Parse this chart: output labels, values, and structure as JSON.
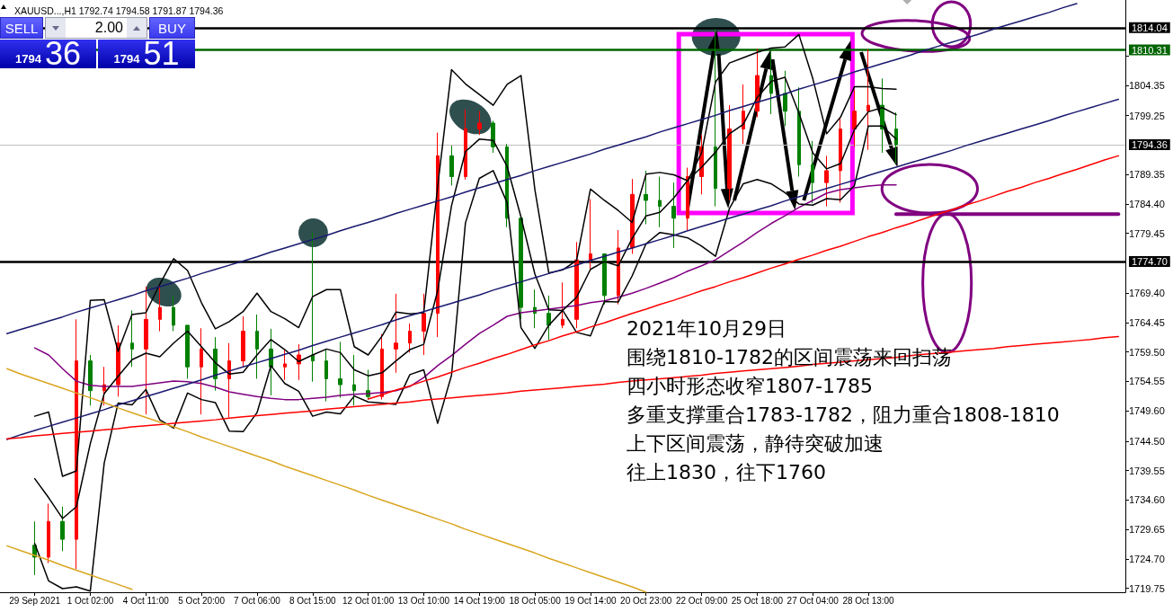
{
  "chart_data": {
    "type": "candlestick",
    "title": "XAUUSD...,H1 1792.74 1794.58 1791.87 1794.36",
    "categories": [
      null,
      null,
      "29 Sep 2021",
      null,
      null,
      null,
      "1 Oct 02:00",
      null,
      null,
      null,
      "4 Oct 11:00",
      null,
      null,
      null,
      "5 Oct 20:00",
      null,
      null,
      null,
      "7 Oct 06:00",
      null,
      null,
      null,
      "8 Oct 15:00",
      null,
      null,
      null,
      "12 Oct 01:00",
      null,
      null,
      null,
      "13 Oct 10:00",
      null,
      null,
      null,
      "14 Oct 19:00",
      null,
      null,
      null,
      "18 Oct 05:00",
      null,
      null,
      null,
      "19 Oct 14:00",
      null,
      null,
      null,
      "20 Oct 23:00",
      null,
      null,
      null,
      "22 Oct 09:00",
      null,
      null,
      null,
      "25 Oct 18:00",
      null,
      null,
      null,
      "27 Oct 04:00",
      null,
      null,
      null,
      "28 Oct 13:00",
      null,
      null,
      null,
      null,
      null,
      null,
      null,
      null,
      null,
      null,
      null,
      null,
      null,
      null,
      null,
      null,
      null,
      null
    ],
    "ohlc": [
      null,
      null,
      [
        1727,
        1731,
        1722,
        1725
      ],
      [
        1725,
        1734,
        1724,
        1731
      ],
      [
        1731,
        1733.5,
        1726,
        1728
      ],
      [
        1728,
        1765,
        1723,
        1758
      ],
      [
        1758,
        1759,
        1750.5,
        1753
      ],
      [
        1753,
        1757,
        1750.5,
        1754
      ],
      [
        1754,
        1764,
        1752,
        1761
      ],
      [
        1761,
        1766.5,
        1757,
        1760
      ],
      [
        1760,
        1770.5,
        1749,
        1765
      ],
      [
        1765,
        1770.8,
        1763,
        1767
      ],
      [
        1767,
        1769,
        1763,
        1764
      ],
      [
        1764,
        1764,
        1755,
        1757
      ],
      [
        1757,
        1763.5,
        1749,
        1760
      ],
      [
        1760,
        1762,
        1753,
        1755
      ],
      [
        1755,
        1761,
        1748.5,
        1758
      ],
      [
        1758,
        1765.5,
        1757,
        1763
      ],
      [
        1763,
        1765.8,
        1755,
        1760
      ],
      [
        1760,
        1763.4,
        1752.2,
        1757
      ],
      [
        1757,
        1759.8,
        1754.8,
        1757.5
      ],
      [
        1757.5,
        1760.8,
        1754.8,
        1759
      ],
      [
        1759,
        1779.6,
        1754.5,
        1758
      ],
      [
        1758,
        1760,
        1751.2,
        1755
      ],
      [
        1755,
        1761.2,
        1751.8,
        1754
      ],
      [
        1754,
        1759,
        1750.5,
        1753
      ],
      [
        1753,
        1756.5,
        1751.5,
        1752
      ],
      [
        1752,
        1762.5,
        1751.5,
        1760
      ],
      [
        1760,
        1769.3,
        1756,
        1761
      ],
      [
        1761,
        1764.3,
        1759.4,
        1763
      ],
      [
        1763,
        1769.3,
        1759,
        1766
      ],
      [
        1766,
        1796.4,
        1762,
        1792.5
      ],
      [
        1792.5,
        1794.2,
        1787.5,
        1789
      ],
      [
        1789,
        1800.3,
        1788.5,
        1797
      ],
      [
        1797,
        1800,
        1796,
        1798
      ],
      [
        1798,
        1798.4,
        1793,
        1794
      ],
      [
        1794,
        1794.5,
        1780.5,
        1782
      ],
      [
        1782,
        1782,
        1765,
        1767
      ],
      [
        1767,
        1770,
        1763.5,
        1766
      ],
      [
        1766,
        1769,
        1761.5,
        1764
      ],
      [
        1764,
        1771.2,
        1763.5,
        1765
      ],
      [
        1765,
        1778,
        1763.5,
        1775
      ],
      [
        1775,
        1785.2,
        1773.5,
        1776
      ],
      [
        1776,
        1776,
        1767.5,
        1769
      ],
      [
        1769,
        1780,
        1767.5,
        1777
      ],
      [
        1777,
        1788.6,
        1776,
        1786
      ],
      [
        1786,
        1790,
        1781,
        1785
      ],
      [
        1785,
        1789,
        1780.5,
        1784
      ],
      [
        1784,
        1788,
        1777,
        1782
      ],
      [
        1782,
        1790.5,
        1780,
        1789
      ],
      [
        1789,
        1796,
        1786,
        1794
      ],
      [
        1794,
        1813.8,
        1784,
        1787
      ],
      [
        1787,
        1801,
        1785,
        1797
      ],
      [
        1797,
        1804.5,
        1794.5,
        1800
      ],
      [
        1800,
        1810.5,
        1799,
        1806
      ],
      [
        1806,
        1810,
        1799.5,
        1803
      ],
      [
        1803,
        1806.8,
        1797.5,
        1800
      ],
      [
        1800,
        1804,
        1789,
        1791
      ],
      [
        1791,
        1795,
        1784.5,
        1788
      ],
      [
        1788,
        1792.5,
        1784,
        1790
      ],
      [
        1790,
        1799,
        1784.6,
        1797
      ],
      [
        1797,
        1803.6,
        1794,
        1800
      ],
      [
        1800,
        1810.4,
        1793.5,
        1801
      ],
      [
        1801,
        1805.5,
        1793,
        1797
      ],
      [
        1797,
        1799.8,
        1791.2,
        1794.36
      ],
      null,
      null,
      null,
      null,
      null,
      null,
      null,
      null,
      null,
      null,
      null,
      null,
      null,
      null,
      null,
      null
    ],
    "colors": [
      null,
      null,
      "#008000",
      "#ff0000",
      "#008000",
      "#ff0000",
      "#008000",
      "#ff0000",
      "#ff0000",
      "#008000",
      "#ff0000",
      "#ff0000",
      "#008000",
      "#008000",
      "#ff0000",
      "#008000",
      "#ff0000",
      "#ff0000",
      "#008000",
      "#008000",
      "#ff0000",
      "#ff0000",
      "#008000",
      "#008000",
      "#008000",
      "#008000",
      "#008000",
      "#ff0000",
      "#ff0000",
      "#ff0000",
      "#ff0000",
      "#ff0000",
      "#008000",
      "#ff0000",
      "#ff0000",
      "#008000",
      "#008000",
      "#008000",
      "#008000",
      "#008000",
      "#ff0000",
      "#ff0000",
      "#ff0000",
      "#008000",
      "#ff0000",
      "#ff0000",
      "#008000",
      "#008000",
      "#008000",
      "#ff0000",
      "#ff0000",
      "#008000",
      "#ff0000",
      "#ff0000",
      "#ff0000",
      "#008000",
      "#008000",
      "#008000",
      "#008000",
      "#ff0000",
      "#ff0000",
      "#ff0000",
      "#ff0000",
      "#008000",
      "#008000",
      null,
      null,
      null,
      null,
      null,
      null,
      null,
      null,
      null,
      null,
      null,
      null,
      null,
      null,
      null,
      null
    ],
    "series": [
      {
        "type": "line",
        "color": "#800080",
        "values": [
          null,
          null,
          1760.2,
          1759.0,
          1756.7,
          1754.6,
          1753.9,
          1753.7,
          1753.7,
          1753.7,
          1754.0,
          1754.3,
          1754.6,
          1754.5,
          1754.2,
          1753.6,
          1752.8,
          1752.4,
          1752.0,
          1751.7,
          1751.5,
          1751.5,
          1751.7,
          1751.9,
          1752.2,
          1752.4,
          1752.5,
          1752.7,
          1753.0,
          1753.7,
          1755.2,
          1757.2,
          1758.9,
          1760.8,
          1762.6,
          1764.0,
          1765.5,
          1766.1,
          1766.4,
          1766.7,
          1767.0,
          1767.3,
          1767.8,
          1768.1,
          1768.7,
          1769.4,
          1770.2,
          1771.1,
          1772.0,
          1773.1,
          1774.0,
          1775.0,
          1776.5,
          1778.0,
          1779.6,
          1781.1,
          1782.4,
          1783.8,
          1785.0,
          1786.2,
          1786.8,
          1787.1,
          1787.4,
          1787.6,
          1787.6,
          null,
          null,
          null,
          null,
          null,
          null,
          null,
          null,
          null,
          null,
          null,
          null,
          null,
          null,
          null,
          null
        ]
      },
      {
        "type": "line",
        "color": "#000000",
        "values": [
          null,
          null,
          1748.7,
          1749.4,
          1738.6,
          1739.5,
          1768.2,
          1768.3,
          1759.6,
          1765.8,
          1766.1,
          1770.9,
          1775.2,
          1773.2,
          1767.8,
          1763.4,
          1764.6,
          1766.3,
          1769.4,
          1766.3,
          1765.1,
          1763.6,
          1768.8,
          1770.0,
          1770.0,
          1760.4,
          1759.0,
          1762.2,
          1766.2,
          1765.9,
          1766.1,
          1787.3,
          1807.0,
          1804.6,
          1802.8,
          1801.0,
          1804.5,
          1806.0,
          1786.8,
          1772.8,
          1773.3,
          1774.9,
          1786.9,
          1785.0,
          1783.3,
          1781.3,
          1789.4,
          1789.7,
          1789.3,
          1788.3,
          1793.0,
          1804.9,
          1808.1,
          1809.0,
          1809.9,
          1810.6,
          1810.8,
          1812.9,
          1805.5,
          1796.2,
          1799.0,
          1804.1,
          1804.1,
          1803.8,
          1803.7,
          null,
          null,
          null,
          null,
          null,
          null,
          null,
          null,
          null,
          null,
          null,
          null,
          null,
          null,
          null,
          null
        ]
      },
      {
        "type": "line",
        "color": "#000000",
        "values": [
          null,
          null,
          1738.2,
          1735.0,
          1731.5,
          1733.5,
          1744.1,
          1752.5,
          1755.4,
          1758.2,
          1759.3,
          1758.7,
          1761.0,
          1763.0,
          1760.4,
          1757.7,
          1755.8,
          1756.1,
          1759.0,
          1761.6,
          1759.9,
          1757.9,
          1759.0,
          1760.0,
          1759.4,
          1756.5,
          1755.5,
          1756.0,
          1758.0,
          1759.9,
          1760.8,
          1769.8,
          1784.1,
          1793.2,
          1795.3,
          1795.1,
          1790.7,
          1782.2,
          1772.6,
          1766.6,
          1766.5,
          1768.7,
          1773.4,
          1774.7,
          1774.0,
          1778.6,
          1782.4,
          1783.0,
          1785.4,
          1788.4,
          1790.6,
          1793.1,
          1796.2,
          1797.8,
          1802.3,
          1805.0,
          1805.7,
          1799.7,
          1793.0,
          1790.3,
          1791.2,
          1796.9,
          1799.9,
          1800.6,
          1799.4,
          null,
          null,
          null,
          null,
          null,
          null,
          null,
          null,
          null,
          null,
          null,
          null,
          null,
          null,
          null,
          null
        ]
      },
      {
        "type": "line",
        "color": "#000000",
        "values": [
          null,
          null,
          1727.3,
          1721.0,
          1719.7,
          1720.0,
          1719.3,
          1740.8,
          1750.9,
          1750.6,
          1753.2,
          1748.1,
          1746.7,
          1752.6,
          1751.5,
          1751.0,
          1746.2,
          1746.1,
          1749.3,
          1757.2,
          1754.2,
          1752.9,
          1748.7,
          1749.4,
          1749.1,
          1752.1,
          1751.1,
          1750.9,
          1750.7,
          1755.7,
          1756.5,
          1747.5,
          1755.6,
          1781.2,
          1788.7,
          1790.0,
          1784.6,
          1763.6,
          1760.1,
          1764.0,
          1766.5,
          1762.8,
          1762.2,
          1768.0,
          1767.9,
          1772.3,
          1777.7,
          1779.6,
          1779.2,
          1778.7,
          1777.3,
          1775.6,
          1783.6,
          1787.8,
          1788.5,
          1787.8,
          1786.3,
          1784.4,
          1784.2,
          1785.3,
          1785.1,
          1787.5,
          1797.5,
          1797.5,
          1795.3,
          null,
          null,
          null,
          null,
          null,
          null,
          null,
          null,
          null,
          null,
          null,
          null,
          null,
          null,
          null,
          null
        ]
      },
      {
        "type": "line",
        "color": "#191970",
        "values": [
          1762.6,
          1763.3,
          1764.0,
          1764.7,
          1765.4,
          1766.2,
          1766.9,
          1767.6,
          1768.3,
          1769.0,
          1769.8,
          1770.5,
          1771.2,
          1771.9,
          1772.7,
          1773.4,
          1774.1,
          1774.8,
          1775.5,
          1776.3,
          1777.0,
          1777.7,
          1778.4,
          1779.1,
          1779.9,
          1780.6,
          1781.3,
          1782.0,
          1782.8,
          1783.5,
          1784.2,
          1784.9,
          1785.6,
          1786.4,
          1787.1,
          1787.8,
          1788.5,
          1789.2,
          1790.0,
          1790.7,
          1791.4,
          1792.1,
          1792.8,
          1793.6,
          1794.3,
          1795.0,
          1795.7,
          1796.5,
          1797.2,
          1797.9,
          1798.6,
          1799.3,
          1800.1,
          1800.8,
          1801.5,
          1802.2,
          1802.9,
          1803.7,
          1804.4,
          1805.1,
          1805.8,
          1806.6,
          1807.3,
          1808.0,
          1808.7,
          1809.4,
          1810.2,
          1810.9,
          1811.6,
          1812.3,
          1813.0,
          1813.8,
          1814.5,
          1815.2,
          1815.9,
          1816.6,
          1817.4,
          1818.1,
          null,
          null,
          null
        ]
      },
      {
        "type": "line",
        "color": "#191970",
        "values": [
          1744.8,
          1745.6,
          1746.3,
          1747.0,
          1747.7,
          1748.4,
          1749.1,
          1749.8,
          1750.6,
          1751.3,
          1752.0,
          1752.7,
          1753.4,
          1754.1,
          1754.8,
          1755.6,
          1756.3,
          1757.0,
          1757.7,
          1758.4,
          1759.1,
          1759.8,
          1760.6,
          1761.3,
          1762.0,
          1762.7,
          1763.4,
          1764.1,
          1764.9,
          1765.6,
          1766.3,
          1767.0,
          1767.7,
          1768.4,
          1769.1,
          1769.9,
          1770.6,
          1771.3,
          1772.0,
          1772.7,
          1773.4,
          1774.1,
          1774.9,
          1775.6,
          1776.3,
          1777.0,
          1777.7,
          1778.4,
          1779.1,
          1779.9,
          1780.6,
          1781.3,
          1782.0,
          1782.7,
          1783.4,
          1784.1,
          1784.9,
          1785.6,
          1786.3,
          1787.0,
          1787.7,
          1788.4,
          1789.2,
          1789.9,
          1790.6,
          1791.3,
          1792.0,
          1792.7,
          1793.4,
          1794.2,
          1794.9,
          1795.6,
          1796.3,
          1797.0,
          1797.7,
          1798.4,
          1799.2,
          1799.9,
          1800.6,
          1801.3,
          1802.0
        ]
      },
      {
        "type": "line",
        "color": "#ff0000",
        "values": [
          null,
          null,
          null,
          null,
          null,
          null,
          null,
          null,
          null,
          null,
          null,
          null,
          null,
          null,
          null,
          null,
          null,
          null,
          null,
          null,
          null,
          null,
          null,
          null,
          null,
          null,
          1751.6,
          1752.3,
          1753.1,
          1753.8,
          1754.6,
          1755.3,
          1756.1,
          1756.9,
          1757.6,
          1758.4,
          1759.1,
          1759.9,
          1760.7,
          1761.4,
          1762.2,
          1762.9,
          1763.7,
          1764.4,
          1765.2,
          1766.0,
          1766.7,
          1767.5,
          1768.2,
          1769.0,
          1769.8,
          1770.5,
          1771.3,
          1772.0,
          1772.8,
          1773.6,
          1774.3,
          1775.1,
          1775.8,
          1776.6,
          1777.3,
          1778.1,
          1778.9,
          1779.6,
          1780.4,
          1781.1,
          1781.9,
          1782.7,
          1783.4,
          1784.2,
          1784.9,
          1785.7,
          1786.5,
          1787.2,
          1788.0,
          1788.7,
          1789.5,
          1790.2,
          1791.0,
          1791.8,
          1792.5
        ]
      },
      {
        "type": "line",
        "color": "#ff0000",
        "values": [
          1744.9,
          1745.1,
          1745.4,
          1745.6,
          1745.8,
          1746.0,
          1746.2,
          1746.4,
          1746.6,
          1746.9,
          1747.1,
          1747.3,
          1747.5,
          1747.7,
          1747.9,
          1748.1,
          1748.4,
          1748.6,
          1748.8,
          1749.0,
          1749.2,
          1749.4,
          1749.6,
          1749.9,
          1750.1,
          1750.3,
          1750.5,
          1750.7,
          1750.9,
          1751.1,
          1751.4,
          1751.6,
          1751.8,
          1752.0,
          1752.2,
          1752.4,
          1752.6,
          1752.9,
          1753.1,
          1753.3,
          1753.5,
          1753.7,
          1753.9,
          1754.1,
          1754.4,
          1754.6,
          1754.8,
          1755.0,
          1755.2,
          1755.4,
          1755.6,
          1755.9,
          1756.1,
          1756.3,
          1756.5,
          1756.7,
          1756.9,
          1757.1,
          1757.4,
          1757.6,
          1757.8,
          1758.0,
          1758.2,
          1758.4,
          1758.6,
          1758.9,
          1759.1,
          1759.3,
          1759.5,
          1759.7,
          1759.9,
          1760.1,
          1760.4,
          1760.6,
          1760.8,
          1761.0,
          1761.2,
          1761.4,
          1761.6,
          1761.9,
          1762.1
        ]
      },
      {
        "type": "line",
        "color": "#daa520",
        "values": [
          1756.7,
          1755.8,
          1755.0,
          1754.2,
          1753.4,
          1752.6,
          1751.8,
          1751.0,
          1750.1,
          1749.3,
          1748.5,
          1747.7,
          1746.9,
          1746.1,
          1745.2,
          1744.4,
          1743.6,
          1742.8,
          1742.0,
          1741.2,
          1740.3,
          1739.5,
          1738.7,
          1737.9,
          1737.1,
          1736.3,
          1735.4,
          1734.6,
          1733.8,
          1733.0,
          1732.2,
          1731.4,
          1730.6,
          1729.7,
          1728.9,
          1728.1,
          1727.3,
          1726.5,
          1725.7,
          1724.8,
          1724.0,
          1723.2,
          1722.4,
          1721.6,
          1720.8,
          1720.0,
          1719.1,
          null,
          null,
          null,
          null,
          null,
          null,
          null,
          null,
          null,
          null,
          null,
          null,
          null,
          null,
          null,
          null,
          null,
          null,
          null,
          null,
          null,
          null,
          null,
          null,
          null,
          null,
          null,
          null,
          null,
          null,
          null,
          null,
          null,
          null
        ]
      },
      {
        "type": "line",
        "color": "#daa520",
        "values": [
          1726.9,
          1726.1,
          1725.3,
          1724.5,
          1723.6,
          1722.8,
          1722.0,
          1721.2,
          1720.4,
          1719.6,
          null,
          null,
          null,
          null,
          null,
          null,
          null,
          null,
          null,
          null,
          null,
          null,
          null,
          null,
          null,
          null,
          null,
          null,
          null,
          null,
          null,
          null,
          null,
          null,
          null,
          null,
          null,
          null,
          null,
          null,
          null,
          null,
          null,
          null,
          null,
          null,
          null,
          null,
          null,
          null,
          null,
          null,
          null,
          null,
          null,
          null,
          null,
          null,
          null,
          null,
          null,
          null,
          null,
          null,
          null,
          null,
          null,
          null,
          null,
          null,
          null,
          null,
          null,
          null,
          null,
          null,
          null,
          null,
          null,
          null,
          null
        ]
      },
      {
        "type": "line",
        "color": "#800080",
        "values": [
          null,
          null,
          null,
          null,
          null,
          null,
          null,
          null,
          null,
          null,
          null,
          null,
          null,
          null,
          null,
          null,
          null,
          null,
          null,
          null,
          null,
          null,
          null,
          null,
          null,
          null,
          null,
          null,
          null,
          null,
          null,
          null,
          null,
          null,
          null,
          null,
          null,
          null,
          null,
          null,
          null,
          null,
          null,
          null,
          null,
          null,
          null,
          null,
          null,
          null,
          null,
          null,
          null,
          null,
          null,
          null,
          null,
          null,
          null,
          null,
          null,
          null,
          null,
          null,
          1782.7,
          1782.7,
          1782.7,
          1782.7,
          1782.7,
          1782.7,
          1782.7,
          1782.7,
          1782.7,
          1782.7,
          1782.7,
          1782.7,
          1782.7,
          1782.7,
          1782.7,
          1782.7,
          1782.7
        ]
      }
    ],
    "ylim": [
      1719.1,
      1818.7
    ],
    "yticks": [
      1719.75,
      {
        "value": 1724.7,
        "label": "1724.70"
      },
      1729.65,
      {
        "value": 1734.6,
        "label": "1734.60"
      },
      1739.55,
      {
        "value": 1744.5,
        "label": "1744.50"
      },
      {
        "value": 1749.6,
        "label": "1749.60"
      },
      1754.55,
      {
        "value": 1759.5,
        "label": "1759.50"
      },
      1764.45,
      {
        "value": 1769.4,
        "label": "1769.40"
      },
      1779.45,
      {
        "value": 1784.4,
        "label": "1784.40"
      },
      1789.35,
      1799.25,
      1804.35,
      {
        "value": 1809.3,
        "label": null
      }
    ],
    "ref_lines": [
      {
        "axis": "y",
        "value": 1814.04,
        "label": "1814.04",
        "color": "#000000"
      },
      {
        "axis": "y",
        "value": 1810.31,
        "label": "1810.31",
        "color": "#006400"
      },
      {
        "axis": "y",
        "value": 1794.36,
        "label": "1794.36",
        "color": "#c0c0c0"
      },
      {
        "axis": "y",
        "value": 1774.7,
        "label": "1774.70",
        "color": "#000000"
      }
    ],
    "marker": "none",
    "annotations": [
      "SELL",
      "2.00",
      "BUY",
      "1794",
      "36",
      "1794",
      "51",
      "2021年10月29日",
      "围绕1810-1782的区间震荡来回扫荡",
      "四小时形态收窄1807-1785",
      "多重支撑重合1783-1782，阻力重合1808-1810",
      "上下区间震荡，静待突破加速",
      "往上1830，往下1760"
    ]
  }
}
